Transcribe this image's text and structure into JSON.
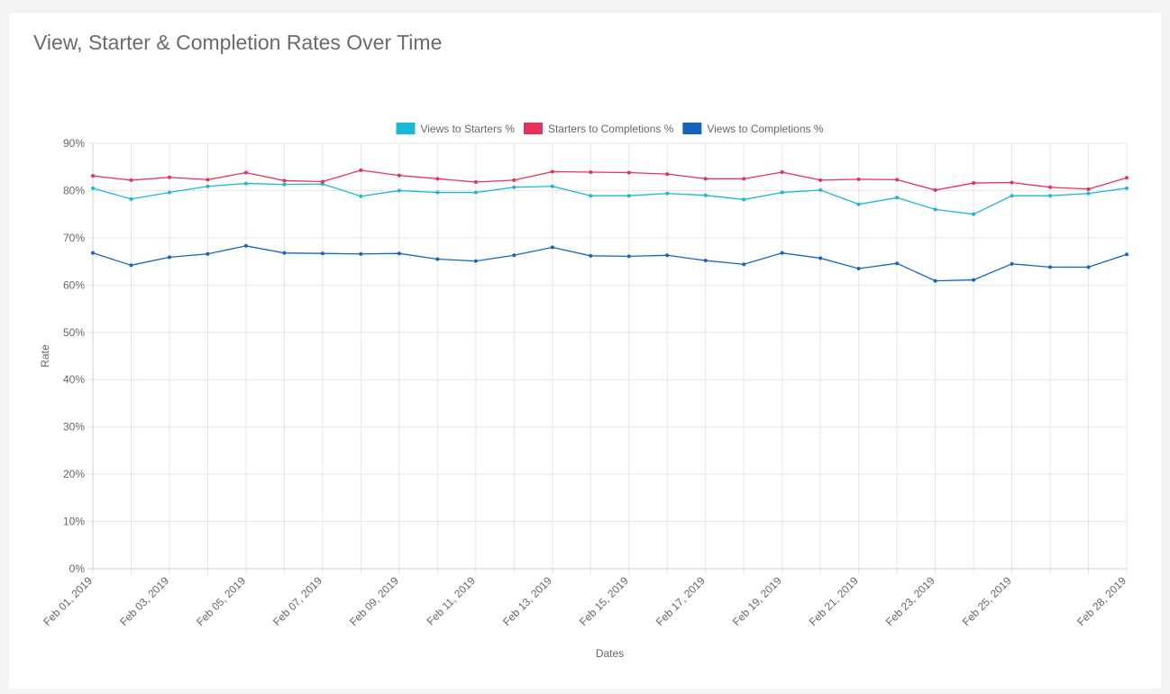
{
  "card": {
    "title": "View, Starter & Completion Rates Over Time"
  },
  "chart_data": {
    "type": "line",
    "x": [
      "Feb 01, 2019",
      "Feb 02, 2019",
      "Feb 03, 2019",
      "Feb 04, 2019",
      "Feb 05, 2019",
      "Feb 06, 2019",
      "Feb 07, 2019",
      "Feb 08, 2019",
      "Feb 09, 2019",
      "Feb 10, 2019",
      "Feb 11, 2019",
      "Feb 12, 2019",
      "Feb 13, 2019",
      "Feb 14, 2019",
      "Feb 15, 2019",
      "Feb 16, 2019",
      "Feb 17, 2019",
      "Feb 18, 2019",
      "Feb 19, 2019",
      "Feb 20, 2019",
      "Feb 21, 2019",
      "Feb 22, 2019",
      "Feb 23, 2019",
      "Feb 24, 2019",
      "Feb 25, 2019",
      "Feb 26, 2019",
      "Feb 27, 2019",
      "Feb 28, 2019"
    ],
    "x_tick_labels": [
      "Feb 01, 2019",
      "Feb 03, 2019",
      "Feb 05, 2019",
      "Feb 07, 2019",
      "Feb 09, 2019",
      "Feb 11, 2019",
      "Feb 13, 2019",
      "Feb 15, 2019",
      "Feb 17, 2019",
      "Feb 19, 2019",
      "Feb 21, 2019",
      "Feb 23, 2019",
      "Feb 25, 2019",
      "Feb 28, 2019"
    ],
    "series": [
      {
        "name": "Views to Starters %",
        "color": "#1ab7d9",
        "values": [
          80.5,
          78.2,
          79.6,
          80.9,
          81.5,
          81.3,
          81.4,
          78.8,
          80.0,
          79.6,
          79.6,
          80.7,
          80.9,
          78.9,
          78.9,
          79.4,
          79.0,
          78.1,
          79.6,
          80.1,
          77.1,
          78.5,
          76.0,
          75.0,
          78.9,
          78.9,
          79.4,
          80.5
        ]
      },
      {
        "name": "Starters to Completions %",
        "color": "#e8305c",
        "values": [
          83.1,
          82.2,
          82.8,
          82.3,
          83.8,
          82.1,
          81.9,
          84.3,
          83.2,
          82.5,
          81.8,
          82.2,
          84.0,
          83.9,
          83.8,
          83.5,
          82.5,
          82.5,
          83.9,
          82.2,
          82.4,
          82.3,
          80.1,
          81.6,
          81.7,
          80.7,
          80.3,
          82.7
        ]
      },
      {
        "name": "Views to Completions %",
        "color": "#1565c0",
        "values": [
          66.8,
          64.2,
          65.9,
          66.6,
          68.3,
          66.8,
          66.7,
          66.6,
          66.7,
          65.5,
          65.1,
          66.3,
          68.0,
          66.2,
          66.1,
          66.3,
          65.2,
          64.4,
          66.8,
          65.7,
          63.5,
          64.6,
          60.9,
          61.1,
          64.5,
          63.8,
          63.8,
          66.5
        ]
      }
    ],
    "yticks": [
      "0%",
      "10%",
      "20%",
      "30%",
      "40%",
      "50%",
      "60%",
      "70%",
      "80%",
      "90%"
    ],
    "ylim": [
      0,
      90
    ],
    "xlabel": "Dates",
    "ylabel": "Rate",
    "legend_position": "top-center",
    "grid": true
  }
}
